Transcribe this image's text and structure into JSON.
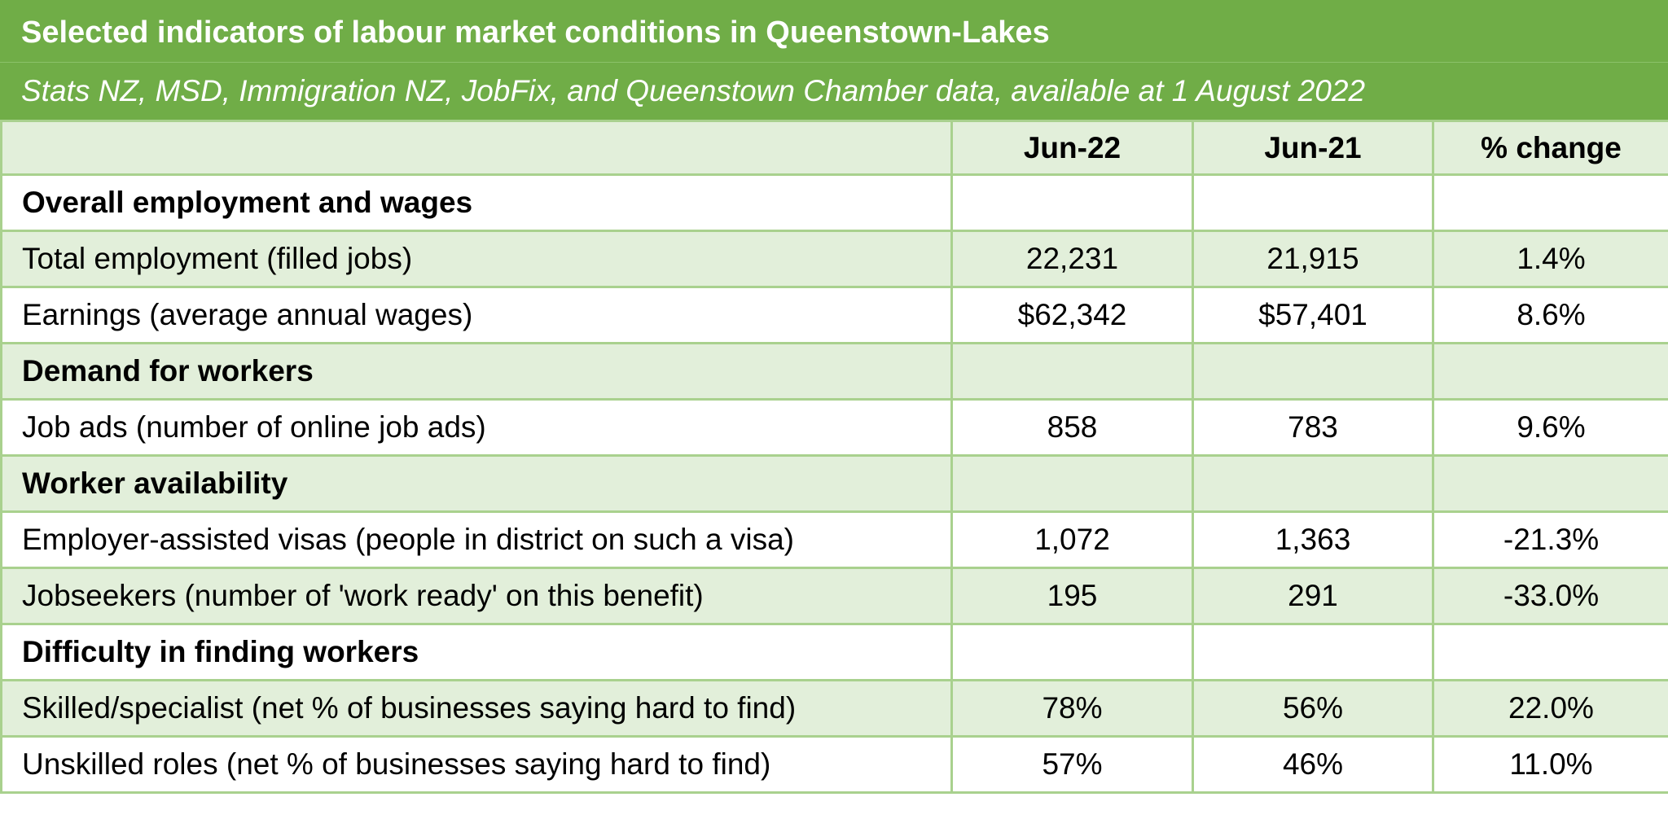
{
  "header": {
    "title": "Selected indicators of labour market conditions in Queenstown-Lakes",
    "subtitle": "Stats NZ, MSD, Immigration NZ, JobFix, and Queenstown Chamber data, available at 1 August 2022"
  },
  "table": {
    "columns": [
      "Jun-22",
      "Jun-21",
      "% change"
    ],
    "rows": [
      [
        "Overall employment and wages"
      ],
      [
        "Total employment (filled jobs)",
        "22,231",
        "21,915",
        "1.4%"
      ],
      [
        "Earnings (average annual wages)",
        "$62,342",
        "$57,401",
        "8.6%"
      ],
      [
        "Demand for workers"
      ],
      [
        "Job ads (number of online job ads)",
        "858",
        "783",
        "9.6%"
      ],
      [
        "Worker availability"
      ],
      [
        "Employer-assisted visas (people in district on such a visa)",
        "1,072",
        "1,363",
        "-21.3%"
      ],
      [
        "Jobseekers (number of 'work ready' on this benefit)",
        "195",
        "291",
        "-33.0%"
      ],
      [
        "Difficulty in finding workers"
      ],
      [
        "Skilled/specialist (net % of businesses saying hard to find)",
        "78%",
        "56%",
        "22.0%"
      ],
      [
        "Unskilled roles (net % of businesses saying hard to find)",
        "57%",
        "46%",
        "11.0%"
      ]
    ]
  }
}
